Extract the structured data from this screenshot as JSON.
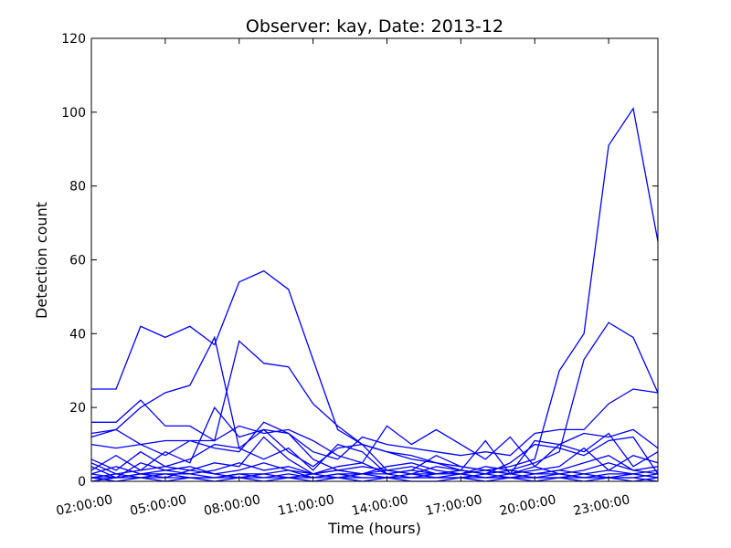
{
  "chart_data": {
    "type": "line",
    "title": "Observer: kay, Date: 2013-12",
    "xlabel": "Time (hours)",
    "ylabel": "Detection count",
    "ylim": [
      0,
      120
    ],
    "yticks": [
      0,
      20,
      40,
      60,
      80,
      100,
      120
    ],
    "xlim": [
      2,
      25
    ],
    "xticks": [
      2,
      5,
      8,
      11,
      14,
      17,
      20,
      23
    ],
    "xtick_labels": [
      "02:00:00",
      "05:00:00",
      "08:00:00",
      "11:00:00",
      "14:00:00",
      "17:00:00",
      "20:00:00",
      "23:00:00"
    ],
    "x": [
      2,
      3,
      4,
      5,
      6,
      7,
      8,
      9,
      10,
      11,
      12,
      13,
      14,
      15,
      16,
      17,
      18,
      19,
      20,
      21,
      22,
      23,
      24,
      25
    ],
    "grid": false,
    "line_color": "#0000ff",
    "series": [
      {
        "values": [
          25,
          25,
          42,
          39,
          42,
          37,
          54,
          57,
          52,
          33,
          14,
          10,
          8,
          7,
          5,
          4,
          3,
          4,
          6,
          30,
          40,
          91,
          101,
          65
        ]
      },
      {
        "values": [
          16,
          16,
          22,
          15,
          15,
          11,
          38,
          32,
          31,
          21,
          15,
          10,
          3,
          2,
          4,
          3,
          2,
          3,
          5,
          8,
          33,
          43,
          39,
          24
        ]
      },
      {
        "values": [
          12,
          14,
          20,
          24,
          26,
          39,
          9,
          14,
          13,
          8,
          6,
          12,
          10,
          9,
          8,
          7,
          8,
          7,
          13,
          14,
          14,
          21,
          25,
          24
        ]
      },
      {
        "values": [
          13,
          14,
          10,
          7,
          11,
          11,
          15,
          13,
          14,
          11,
          7,
          5,
          15,
          10,
          14,
          10,
          6,
          12,
          4,
          10,
          13,
          12,
          14,
          9
        ]
      },
      {
        "values": [
          10,
          9,
          10,
          11,
          11,
          9,
          8,
          16,
          13,
          6,
          3,
          4,
          3,
          4,
          2,
          3,
          11,
          2,
          11,
          10,
          8,
          13,
          4,
          8
        ]
      },
      {
        "values": [
          5,
          2,
          3,
          8,
          5,
          20,
          12,
          14,
          8,
          4,
          9,
          10,
          8,
          6,
          5,
          3,
          2,
          5,
          10,
          9,
          7,
          11,
          12,
          2
        ]
      },
      {
        "values": [
          3,
          7,
          3,
          4,
          6,
          10,
          9,
          6,
          9,
          3,
          10,
          8,
          2,
          3,
          7,
          4,
          3,
          2,
          3,
          4,
          9,
          3,
          7,
          5
        ]
      },
      {
        "values": [
          6,
          3,
          8,
          4,
          3,
          5,
          4,
          12,
          6,
          2,
          3,
          2,
          4,
          5,
          3,
          2,
          4,
          3,
          2,
          3,
          5,
          7,
          3,
          4
        ]
      },
      {
        "values": [
          2,
          4,
          2,
          3,
          2,
          3,
          5,
          3,
          4,
          2,
          4,
          5,
          2,
          3,
          2,
          2,
          3,
          2,
          4,
          2,
          3,
          5,
          3,
          2
        ]
      },
      {
        "values": [
          4,
          1,
          5,
          3,
          4,
          2,
          3,
          5,
          3,
          2,
          3,
          2,
          3,
          2,
          2,
          3,
          2,
          3,
          2,
          3,
          2,
          3,
          2,
          3
        ]
      },
      {
        "values": [
          1,
          2,
          1,
          2,
          2,
          1,
          2,
          2,
          3,
          1,
          2,
          2,
          1,
          2,
          1,
          1,
          2,
          1,
          2,
          2,
          1,
          2,
          2,
          1
        ]
      },
      {
        "values": [
          2,
          1,
          2,
          1,
          3,
          2,
          1,
          2,
          1,
          2,
          1,
          2,
          2,
          1,
          2,
          2,
          1,
          2,
          1,
          1,
          2,
          1,
          1,
          2
        ]
      },
      {
        "values": [
          1,
          1,
          2,
          2,
          1,
          1,
          2,
          1,
          2,
          1,
          2,
          1,
          1,
          1,
          1,
          2,
          1,
          1,
          1,
          2,
          1,
          1,
          2,
          1
        ]
      },
      {
        "values": [
          0,
          1,
          1,
          1,
          1,
          1,
          1,
          1,
          1,
          1,
          1,
          1,
          1,
          1,
          1,
          1,
          1,
          1,
          1,
          1,
          1,
          1,
          1,
          0
        ]
      },
      {
        "values": [
          1,
          0,
          1,
          0,
          1,
          0,
          1,
          0,
          1,
          0,
          1,
          0,
          1,
          0,
          0,
          1,
          0,
          1,
          0,
          1,
          0,
          1,
          0,
          1
        ]
      }
    ]
  }
}
